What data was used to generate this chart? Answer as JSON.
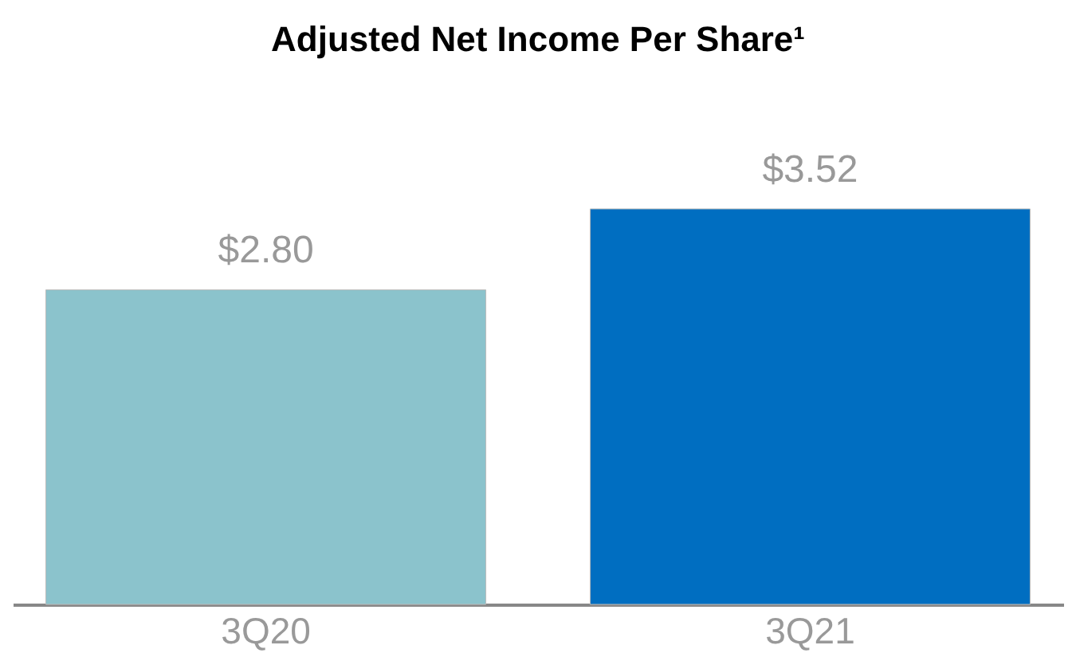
{
  "chart_data": {
    "type": "bar",
    "title": "Adjusted Net Income Per Share¹",
    "categories": [
      "3Q20",
      "3Q21"
    ],
    "values": [
      2.8,
      3.52
    ],
    "colors": [
      "#8bc3cc",
      "#006ec1"
    ],
    "value_labels": [
      "$2.80",
      "$3.52"
    ],
    "grid": false,
    "legend": false
  }
}
